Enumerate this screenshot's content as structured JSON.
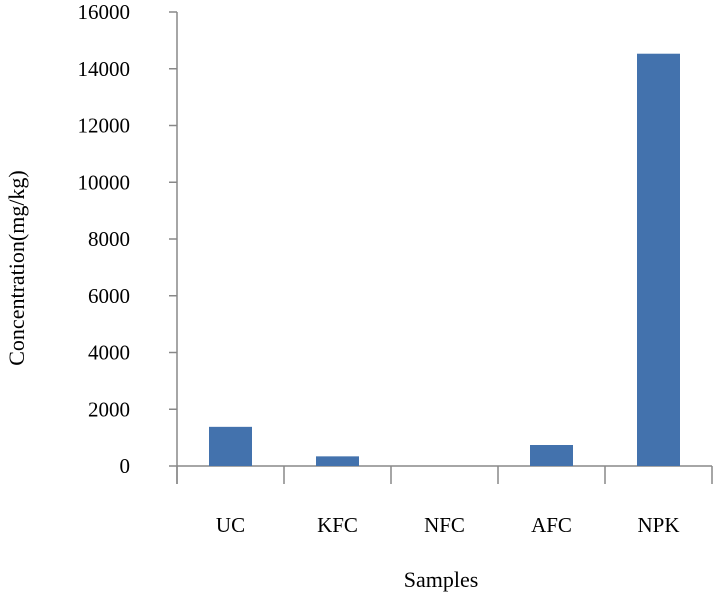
{
  "chart_data": {
    "type": "bar",
    "xlabel": "Samples",
    "ylabel": "Concentration(mg/kg)",
    "categories": [
      "UC",
      "KFC",
      "NFC",
      "AFC",
      "NPK"
    ],
    "values": [
      1380,
      340,
      0,
      740,
      14530
    ],
    "ylim": [
      0,
      16000
    ],
    "yticks": [
      "0",
      "2000",
      "4000",
      "6000",
      "8000",
      "10000",
      "12000",
      "14000",
      "16000"
    ],
    "grid": false,
    "legend": "none",
    "bar_color": "#4372ad"
  }
}
